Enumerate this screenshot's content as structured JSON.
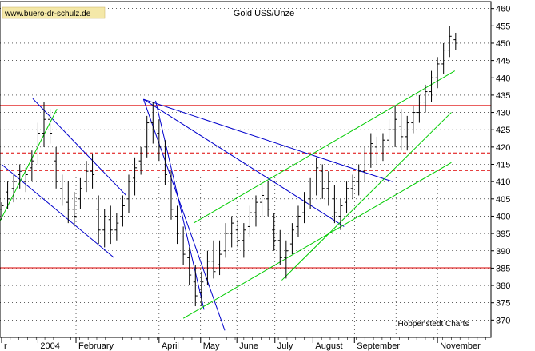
{
  "watermark": "www.buero-dr-schulz.de",
  "credit": "Hoppenstedt Charts",
  "chart_data": {
    "type": "bar",
    "style": "ohlc",
    "title": "Gold US$/Unze",
    "xlabel": "",
    "ylabel": "",
    "ylim": [
      365,
      462
    ],
    "grid": true,
    "y_axis_side": "right",
    "y_ticks": [
      370,
      375,
      380,
      385,
      390,
      395,
      400,
      405,
      410,
      415,
      420,
      425,
      430,
      435,
      440,
      445,
      450,
      455,
      460
    ],
    "x_ticks": [
      {
        "label": "r",
        "x": 0.0
      },
      {
        "label": "2004",
        "x": 2.1
      },
      {
        "label": "February",
        "x": 4.3
      },
      {
        "label": "April",
        "x": 9.1
      },
      {
        "label": "May",
        "x": 11.5
      },
      {
        "label": "June",
        "x": 13.6
      },
      {
        "label": "July",
        "x": 15.8
      },
      {
        "label": "August",
        "x": 18.0
      },
      {
        "label": "September",
        "x": 20.4
      },
      {
        "label": "November",
        "x": 25.2
      }
    ],
    "x_gridlines": [
      2.1,
      4.3,
      6.5,
      9.1,
      11.5,
      13.6,
      15.8,
      18.0,
      20.4,
      22.8,
      25.2
    ],
    "x_range": [
      0,
      28.2
    ],
    "x_unit": "weeks",
    "series": [
      {
        "values": [
          [
            0.0,
            402,
            404,
            399,
            403
          ],
          [
            0.35,
            407,
            410,
            402,
            405
          ],
          [
            0.7,
            408,
            412,
            404,
            410
          ],
          [
            1.05,
            412,
            415,
            408,
            413
          ],
          [
            1.4,
            410,
            414,
            407,
            412
          ],
          [
            1.75,
            414,
            419,
            410,
            416
          ],
          [
            2.1,
            418,
            427,
            415,
            424
          ],
          [
            2.45,
            424,
            433,
            420,
            428
          ],
          [
            2.8,
            428,
            431,
            421,
            424
          ],
          [
            3.15,
            416,
            420,
            408,
            410
          ],
          [
            3.5,
            408,
            412,
            403,
            409
          ],
          [
            3.85,
            404,
            410,
            398,
            402
          ],
          [
            4.2,
            402,
            407,
            397,
            400
          ],
          [
            4.55,
            405,
            411,
            402,
            408
          ],
          [
            4.9,
            410,
            416,
            407,
            413
          ],
          [
            5.25,
            413,
            418,
            408,
            412
          ],
          [
            5.6,
            402,
            406,
            392,
            396
          ],
          [
            5.95,
            396,
            402,
            391,
            400
          ],
          [
            6.3,
            399,
            403,
            392,
            396
          ],
          [
            6.65,
            396,
            401,
            393,
            398
          ],
          [
            7.0,
            400,
            406,
            397,
            403
          ],
          [
            7.35,
            405,
            412,
            401,
            410
          ],
          [
            7.7,
            411,
            417,
            406,
            414
          ],
          [
            8.05,
            416,
            420,
            412,
            418
          ],
          [
            8.4,
            420,
            429,
            417,
            427
          ],
          [
            8.75,
            427,
            433,
            421,
            425
          ],
          [
            9.1,
            424,
            428,
            416,
            420
          ],
          [
            9.45,
            418,
            422,
            409,
            412
          ],
          [
            9.8,
            409,
            413,
            399,
            402
          ],
          [
            10.15,
            400,
            403,
            392,
            395
          ],
          [
            10.5,
            394,
            397,
            386,
            389
          ],
          [
            10.85,
            388,
            391,
            380,
            383
          ],
          [
            11.2,
            381,
            386,
            374,
            377
          ],
          [
            11.55,
            378,
            384,
            374,
            381
          ],
          [
            11.9,
            382,
            390,
            380,
            387
          ],
          [
            12.25,
            387,
            393,
            382,
            384
          ],
          [
            12.6,
            386,
            393,
            383,
            389
          ],
          [
            12.95,
            390,
            398,
            388,
            395
          ],
          [
            13.3,
            395,
            400,
            391,
            398
          ],
          [
            13.65,
            396,
            399,
            391,
            393
          ],
          [
            14.0,
            393,
            398,
            388,
            396
          ],
          [
            14.35,
            397,
            403,
            394,
            401
          ],
          [
            14.7,
            401,
            406,
            397,
            404
          ],
          [
            15.05,
            404,
            409,
            400,
            406
          ],
          [
            15.4,
            405,
            410,
            400,
            402
          ],
          [
            15.75,
            396,
            401,
            390,
            393
          ],
          [
            16.1,
            393,
            396,
            386,
            388
          ],
          [
            16.45,
            388,
            393,
            382,
            390
          ],
          [
            16.8,
            392,
            398,
            389,
            396
          ],
          [
            17.15,
            397,
            403,
            394,
            400
          ],
          [
            17.5,
            401,
            407,
            398,
            404
          ],
          [
            17.85,
            405,
            411,
            402,
            409
          ],
          [
            18.2,
            409,
            417,
            406,
            414
          ],
          [
            18.55,
            413,
            415,
            405,
            408
          ],
          [
            18.9,
            408,
            413,
            403,
            410
          ],
          [
            19.25,
            405,
            409,
            398,
            401
          ],
          [
            19.6,
            400,
            405,
            396,
            403
          ],
          [
            19.95,
            404,
            410,
            401,
            408
          ],
          [
            20.3,
            408,
            412,
            405,
            410
          ],
          [
            20.65,
            410,
            415,
            406,
            413
          ],
          [
            21.0,
            413,
            420,
            410,
            418
          ],
          [
            21.35,
            418,
            424,
            414,
            421
          ],
          [
            21.7,
            420,
            423,
            415,
            418
          ],
          [
            22.05,
            418,
            424,
            416,
            422
          ],
          [
            22.4,
            422,
            428,
            419,
            425
          ],
          [
            22.75,
            425,
            432,
            420,
            428
          ],
          [
            23.1,
            426,
            431,
            419,
            423
          ],
          [
            23.45,
            423,
            429,
            419,
            427
          ],
          [
            23.8,
            427,
            432,
            424,
            430
          ],
          [
            24.15,
            430,
            435,
            427,
            433
          ],
          [
            24.5,
            433,
            438,
            430,
            436
          ],
          [
            24.85,
            436,
            442,
            433,
            440
          ],
          [
            25.2,
            440,
            446,
            437,
            444
          ],
          [
            25.55,
            444,
            450,
            441,
            448
          ],
          [
            25.9,
            448,
            455,
            446,
            452
          ],
          [
            26.25,
            451,
            453,
            448,
            450
          ]
        ]
      }
    ],
    "horizontal_lines": [
      {
        "y": 432.0,
        "style": "solid",
        "color": "#dd0000"
      },
      {
        "y": 418.3,
        "style": "dashed",
        "color": "#dd0000"
      },
      {
        "y": 413.2,
        "style": "dashed",
        "color": "#dd0000"
      },
      {
        "y": 385.1,
        "style": "solid",
        "color": "#dd0000"
      }
    ],
    "trend_lines": [
      {
        "from": [
          0.0,
          415.0
        ],
        "to": [
          6.5,
          388.0
        ],
        "color": "#0000cc"
      },
      {
        "from": [
          1.8,
          434.0
        ],
        "to": [
          7.2,
          406.0
        ],
        "color": "#0000cc"
      },
      {
        "from": [
          8.2,
          433.8
        ],
        "to": [
          12.9,
          367.0
        ],
        "color": "#0000cc"
      },
      {
        "from": [
          8.2,
          433.8
        ],
        "to": [
          19.8,
          397.0
        ],
        "color": "#0000cc"
      },
      {
        "from": [
          8.2,
          433.8
        ],
        "to": [
          22.6,
          410.0
        ],
        "color": "#0000cc"
      },
      {
        "from": [
          8.9,
          433.4
        ],
        "to": [
          11.7,
          373.0
        ],
        "color": "#0000cc"
      },
      {
        "from": [
          -0.1,
          398.5
        ],
        "to": [
          3.2,
          431.0
        ],
        "color": "#00cc00"
      },
      {
        "from": [
          11.1,
          398.0
        ],
        "to": [
          26.2,
          442.0
        ],
        "color": "#00cc00"
      },
      {
        "from": [
          10.5,
          370.5
        ],
        "to": [
          26.0,
          415.5
        ],
        "color": "#00cc00"
      },
      {
        "from": [
          16.2,
          381.5
        ],
        "to": [
          26.0,
          430.0
        ],
        "color": "#00cc00"
      }
    ],
    "colors": {
      "bars": "#000000",
      "grid": "#000000",
      "support_resistance": "#dd0000",
      "downtrend": "#0000cc",
      "uptrend": "#00cc00"
    }
  }
}
